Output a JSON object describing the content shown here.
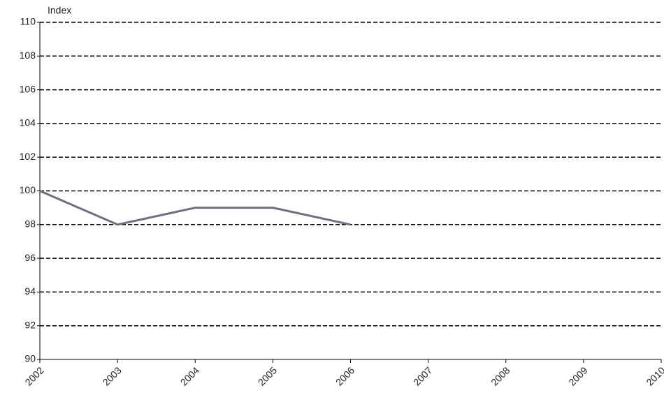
{
  "chart_data": {
    "type": "line",
    "y_label": "Index",
    "x": [
      2002,
      2003,
      2004,
      2005,
      2006
    ],
    "series": [
      {
        "name": "Index",
        "color": "#776b7f",
        "values": [
          100,
          98,
          99,
          99,
          98
        ]
      }
    ],
    "xlim": [
      2002,
      2010
    ],
    "xticks": [
      2002,
      2003,
      2004,
      2005,
      2006,
      2007,
      2008,
      2009,
      2010
    ],
    "ylim": [
      90,
      110
    ],
    "yticks": [
      90,
      92,
      94,
      96,
      98,
      100,
      102,
      104,
      106,
      108,
      110
    ],
    "grid": true
  }
}
